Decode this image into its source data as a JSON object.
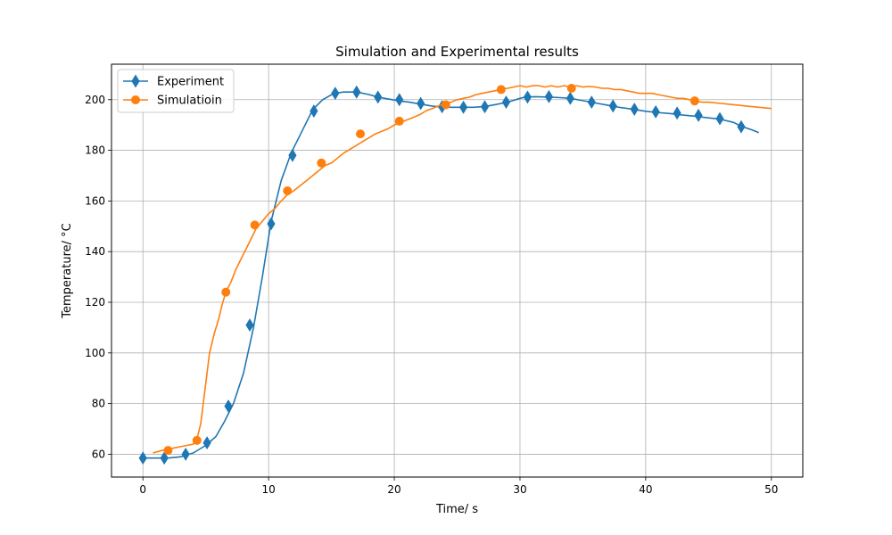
{
  "chart_data": {
    "type": "line",
    "title": "Simulation and Experimental results",
    "xlabel": "Time/ s",
    "ylabel": "Temperature/ °C",
    "xlim": [
      -2.5,
      52.5
    ],
    "ylim": [
      51,
      214
    ],
    "xticks": [
      0,
      10,
      20,
      30,
      40,
      50
    ],
    "yticks": [
      60,
      80,
      100,
      120,
      140,
      160,
      180,
      200
    ],
    "grid": true,
    "legend_position": "top-left",
    "series": [
      {
        "name": "Experiment",
        "color": "#1f77b4",
        "marker": "thin-diamond",
        "x": [
          0,
          1,
          2,
          3,
          4,
          5,
          5.8,
          6.5,
          7.2,
          8,
          8.8,
          9.5,
          10.2,
          11,
          11.8,
          12.6,
          13.5,
          14.3,
          15.2,
          16,
          17,
          18,
          18.7,
          19.5,
          20.4,
          21.2,
          22,
          23,
          24,
          25,
          25.5,
          26.3,
          27.2,
          28,
          29,
          30,
          30.4,
          31.2,
          32.3,
          33.2,
          34,
          35,
          36,
          37.1,
          38,
          39,
          40,
          40.8,
          42,
          42.8,
          43.8,
          45,
          45.9,
          47,
          47.6,
          48.5,
          49
        ],
        "y": [
          58.5,
          58.5,
          58.5,
          59,
          60.5,
          63.5,
          67,
          73,
          80,
          92,
          110,
          130,
          152,
          168,
          179,
          187,
          196,
          200,
          202.5,
          203,
          203,
          202,
          201,
          200.3,
          199.5,
          199,
          198.3,
          197.5,
          197,
          197,
          197,
          197,
          197.3,
          198,
          199,
          200.5,
          201,
          201.2,
          201,
          200.8,
          200.5,
          199.6,
          198.7,
          197.7,
          196.9,
          196.2,
          195.4,
          195,
          194.5,
          194,
          193.5,
          192.8,
          192.3,
          191,
          189.5,
          188,
          187
        ],
        "marker_x": [
          0,
          1.7,
          3.4,
          5.1,
          6.8,
          8.5,
          10.2,
          11.9,
          13.6,
          15.3,
          17,
          18.7,
          20.4,
          22.1,
          23.8,
          25.5,
          27.2,
          28.9,
          30.6,
          32.3,
          34,
          35.7,
          37.4,
          39.1,
          40.8,
          42.5,
          44.2,
          45.9,
          47.6
        ],
        "marker_y": [
          58.5,
          58.5,
          60,
          64.5,
          79,
          111,
          151,
          178,
          195.5,
          202.5,
          203,
          201,
          200,
          198.5,
          197.2,
          197,
          197.2,
          199,
          201,
          201.2,
          200.5,
          199,
          197.5,
          196.2,
          195.2,
          194.7,
          193.8,
          192.5,
          189.3
        ]
      },
      {
        "name": "Simulatioin",
        "color": "#ff7f0e",
        "marker": "circle",
        "x": [
          0.8,
          1.5,
          2,
          2.5,
          3,
          3.5,
          4,
          4.3,
          4.6,
          5,
          5.3,
          5.7,
          6,
          6.3,
          6.6,
          7,
          7.4,
          7.8,
          8.2,
          8.6,
          9,
          9.5,
          10,
          10.5,
          11,
          11.5,
          12,
          12.5,
          13,
          13.5,
          14,
          14.5,
          15,
          15.5,
          16,
          16.5,
          17,
          17.5,
          18,
          18.5,
          19,
          19.5,
          20,
          20.5,
          21,
          21.5,
          22,
          22.5,
          23,
          23.5,
          24,
          24.5,
          25,
          25.5,
          26,
          26.5,
          27,
          27.5,
          28,
          28.5,
          29,
          29.5,
          30,
          30.5,
          31,
          31.5,
          32,
          32.5,
          33,
          33.5,
          34,
          34.5,
          35,
          35.5,
          36,
          36.5,
          37,
          37.5,
          38,
          38.5,
          39,
          39.5,
          40,
          40.5,
          41,
          41.5,
          42,
          42.5,
          43,
          43.5,
          44,
          44.5,
          45,
          46,
          47,
          48,
          49,
          50
        ],
        "y": [
          60.5,
          61.5,
          62,
          62.5,
          63,
          63.5,
          64,
          66,
          72,
          88,
          100,
          108,
          113,
          119,
          124,
          128,
          133,
          137,
          141,
          145,
          149,
          152,
          155,
          157,
          160,
          162.5,
          164,
          166,
          168,
          170,
          172,
          174,
          175,
          177,
          179,
          180.5,
          182,
          183.5,
          185,
          186.5,
          187.5,
          188.5,
          190,
          191,
          192,
          193,
          194,
          195.5,
          196.5,
          197.5,
          198.5,
          199,
          200,
          200.5,
          201,
          202,
          202.5,
          203,
          203.5,
          204,
          204.5,
          205,
          205.5,
          205,
          205.5,
          205.5,
          205,
          205.5,
          205,
          205.5,
          205,
          205.5,
          205,
          205.2,
          205,
          204.5,
          204.5,
          204,
          204,
          203.5,
          203,
          202.5,
          202.5,
          202.5,
          202,
          201.5,
          201,
          200.5,
          200.5,
          200,
          199.5,
          199,
          199,
          198.5,
          198,
          197.5,
          197,
          196.5
        ],
        "marker_x": [
          2,
          4.3,
          6.6,
          8.9,
          11.5,
          14.2,
          17.3,
          20.4,
          24.1,
          28.5,
          34.1,
          43.9
        ],
        "marker_y": [
          61.5,
          65.5,
          124,
          150.5,
          164,
          175,
          186.5,
          191.5,
          198,
          204,
          204.5,
          199.5
        ]
      }
    ]
  }
}
